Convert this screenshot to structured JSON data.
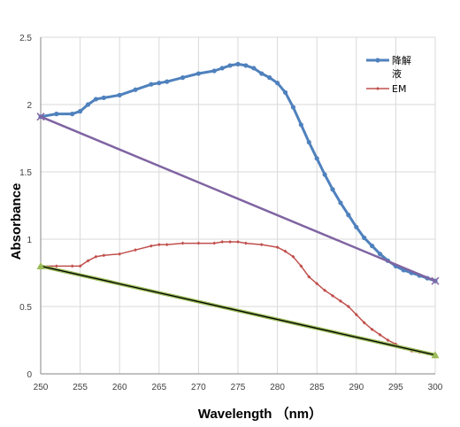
{
  "chart_data": {
    "type": "line",
    "title": "",
    "xlabel": "Wavelength （nm）",
    "ylabel": "Absorbance",
    "xlim": [
      250,
      300
    ],
    "ylim": [
      0,
      2.5
    ],
    "xticks": [
      "250",
      "255",
      "260",
      "265",
      "270",
      "275",
      "280",
      "285",
      "290",
      "295",
      "300"
    ],
    "yticks": [
      "0",
      "0.5",
      "1",
      "1.5",
      "2",
      "2.5"
    ],
    "grid": true,
    "legend_position": "top-right",
    "series": [
      {
        "name": "降解液",
        "color": "#4F81BD",
        "marker": "circle",
        "x": [
          250,
          252,
          254,
          255,
          256,
          257,
          258,
          260,
          262,
          264,
          265,
          266,
          268,
          270,
          272,
          273,
          274,
          275,
          276,
          277,
          278,
          279,
          280,
          281,
          282,
          283,
          284,
          285,
          286,
          287,
          288,
          289,
          290,
          291,
          292,
          293,
          294,
          295,
          296,
          297,
          298,
          299,
          300
        ],
        "y": [
          1.91,
          1.93,
          1.93,
          1.95,
          2.0,
          2.04,
          2.05,
          2.07,
          2.11,
          2.15,
          2.16,
          2.17,
          2.2,
          2.23,
          2.25,
          2.27,
          2.29,
          2.3,
          2.29,
          2.27,
          2.23,
          2.2,
          2.16,
          2.09,
          1.98,
          1.85,
          1.72,
          1.6,
          1.48,
          1.37,
          1.27,
          1.18,
          1.09,
          1.01,
          0.95,
          0.89,
          0.84,
          0.8,
          0.77,
          0.75,
          0.73,
          0.71,
          0.69
        ]
      },
      {
        "name": "EM",
        "color": "#C0504D",
        "marker": "diamond",
        "x": [
          250,
          252,
          254,
          255,
          256,
          257,
          258,
          260,
          262,
          264,
          265,
          266,
          268,
          270,
          272,
          273,
          274,
          275,
          276,
          278,
          280,
          281,
          282,
          283,
          284,
          285,
          286,
          287,
          288,
          289,
          290,
          291,
          292,
          293,
          294,
          295,
          296,
          297,
          298,
          299,
          300
        ],
        "y": [
          0.8,
          0.8,
          0.8,
          0.8,
          0.84,
          0.87,
          0.88,
          0.89,
          0.92,
          0.95,
          0.96,
          0.96,
          0.97,
          0.97,
          0.97,
          0.98,
          0.98,
          0.98,
          0.97,
          0.96,
          0.94,
          0.91,
          0.87,
          0.8,
          0.72,
          0.67,
          0.62,
          0.58,
          0.54,
          0.5,
          0.44,
          0.38,
          0.33,
          0.29,
          0.25,
          0.22,
          0.19,
          0.17,
          0.16,
          0.15,
          0.14
        ]
      },
      {
        "color": "#8064A2",
        "marker": "x",
        "endpoint_markers": true,
        "x": [
          250,
          300
        ],
        "y": [
          1.91,
          0.69
        ]
      },
      {
        "color": "#000000",
        "halo_color": "#9BBB59",
        "marker": "triangle",
        "endpoint_markers": true,
        "x": [
          250,
          300
        ],
        "y": [
          0.8,
          0.14
        ]
      }
    ]
  }
}
